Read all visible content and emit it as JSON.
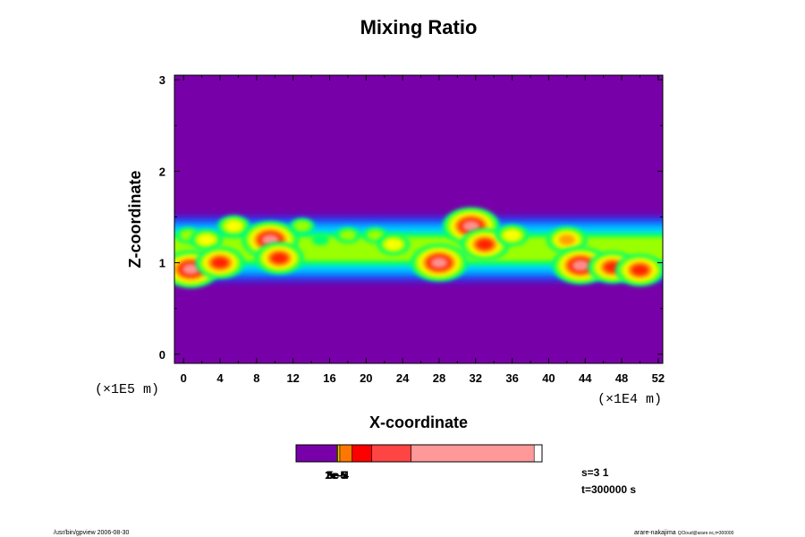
{
  "chart_data": {
    "type": "heatmap",
    "title": "Mixing Ratio",
    "xlabel": "X-coordinate",
    "ylabel": "Z-coordinate",
    "xunit": "(×1E4 m)",
    "yunit": "(×1E5 m)",
    "xlim": [
      -1,
      52.5
    ],
    "ylim": [
      -0.1,
      3.05
    ],
    "xticks": [
      0,
      4,
      8,
      12,
      16,
      20,
      24,
      28,
      32,
      36,
      40,
      44,
      48,
      52
    ],
    "yticks": [
      0,
      1,
      2,
      3
    ],
    "background_color": "#7800a8",
    "colorbar": {
      "colors": [
        "#7800a8",
        "#d09000",
        "#ffd000",
        "#ff7700",
        "#ff0000",
        "#ff4444",
        "#ff9999"
      ],
      "fractions": [
        0.165,
        0.005,
        0.008,
        0.05,
        0.08,
        0.16,
        0.5
      ],
      "labels": [
        "1e-5",
        "2e-5",
        "3e-5",
        "5e-4"
      ]
    },
    "cloud_band": {
      "z_center": 1.15,
      "colors_low_to_high": [
        "#1e3cff",
        "#00a0ff",
        "#00e0ff",
        "#00ff70",
        "#9aff00",
        "#ffff00",
        "#ffa000",
        "#ff2000",
        "#ff9090"
      ],
      "cells": [
        {
          "x": 0.5,
          "z": 1.3,
          "level": 4
        },
        {
          "x": 2.5,
          "z": 1.25,
          "level": 5
        },
        {
          "x": 0.8,
          "z": 0.93,
          "level": 8
        },
        {
          "x": 4.0,
          "z": 1.0,
          "level": 7
        },
        {
          "x": 5.5,
          "z": 1.4,
          "level": 5
        },
        {
          "x": 9.5,
          "z": 1.25,
          "level": 8
        },
        {
          "x": 10.5,
          "z": 1.05,
          "level": 7
        },
        {
          "x": 13.0,
          "z": 1.4,
          "level": 4
        },
        {
          "x": 15.0,
          "z": 1.25,
          "level": 3
        },
        {
          "x": 18.0,
          "z": 1.3,
          "level": 4
        },
        {
          "x": 21.0,
          "z": 1.3,
          "level": 4
        },
        {
          "x": 23.0,
          "z": 1.2,
          "level": 5
        },
        {
          "x": 28.0,
          "z": 1.0,
          "level": 8
        },
        {
          "x": 31.5,
          "z": 1.4,
          "level": 8
        },
        {
          "x": 33.0,
          "z": 1.2,
          "level": 7
        },
        {
          "x": 36.0,
          "z": 1.3,
          "level": 5
        },
        {
          "x": 42.0,
          "z": 1.25,
          "level": 6
        },
        {
          "x": 43.5,
          "z": 0.97,
          "level": 8
        },
        {
          "x": 47.0,
          "z": 0.95,
          "level": 7
        },
        {
          "x": 50.0,
          "z": 0.92,
          "level": 7
        }
      ]
    }
  },
  "info": {
    "s": "s=3 1",
    "t": "t=300000 s"
  },
  "footer": {
    "left": "/usr/bin/gpview 2006-08-30",
    "right": "arare-nakajima",
    "right_small": "QCloud@arare.nc,t=300000"
  }
}
